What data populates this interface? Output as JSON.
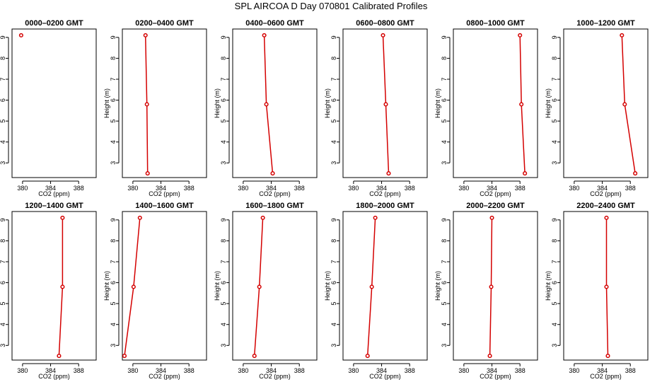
{
  "title": "SPL AIRCOA D  Day 070801  Calibrated Profiles",
  "chart_data": [
    {
      "type": "line",
      "title": "0000–0200 GMT",
      "xlabel": "CO2 (ppm)",
      "ylabel": "Height (m)",
      "xlim": [
        378.5,
        390.5
      ],
      "ylim": [
        2.3,
        9.4
      ],
      "xticks": [
        380,
        384,
        388
      ],
      "yticks": [
        3,
        4,
        5,
        6,
        7,
        8,
        9
      ],
      "series": [
        {
          "x": [
            379.8
          ],
          "y": [
            9.1
          ]
        }
      ]
    },
    {
      "type": "line",
      "title": "0200–0400 GMT",
      "xlabel": "CO2 (ppm)",
      "ylabel": "Height (m)",
      "xlim": [
        378.5,
        390.5
      ],
      "ylim": [
        2.3,
        9.4
      ],
      "xticks": [
        380,
        384,
        388
      ],
      "yticks": [
        3,
        4,
        5,
        6,
        7,
        8,
        9
      ],
      "series": [
        {
          "x": [
            381.8,
            382.0,
            382.1
          ],
          "y": [
            9.1,
            5.8,
            2.5
          ]
        }
      ]
    },
    {
      "type": "line",
      "title": "0400–0600 GMT",
      "xlabel": "CO2 (ppm)",
      "ylabel": "Height (m)",
      "xlim": [
        378.5,
        390.5
      ],
      "ylim": [
        2.3,
        9.4
      ],
      "xticks": [
        380,
        384,
        388
      ],
      "yticks": [
        3,
        4,
        5,
        6,
        7,
        8,
        9
      ],
      "series": [
        {
          "x": [
            383.0,
            383.3,
            384.2
          ],
          "y": [
            9.1,
            5.8,
            2.5
          ]
        }
      ]
    },
    {
      "type": "line",
      "title": "0600–0800 GMT",
      "xlabel": "CO2 (ppm)",
      "ylabel": "Height (m)",
      "xlim": [
        378.5,
        390.5
      ],
      "ylim": [
        2.3,
        9.4
      ],
      "xticks": [
        380,
        384,
        388
      ],
      "yticks": [
        3,
        4,
        5,
        6,
        7,
        8,
        9
      ],
      "series": [
        {
          "x": [
            384.2,
            384.6,
            385.0
          ],
          "y": [
            9.1,
            5.8,
            2.5
          ]
        }
      ]
    },
    {
      "type": "line",
      "title": "0800–1000 GMT",
      "xlabel": "CO2 (ppm)",
      "ylabel": "Height (m)",
      "xlim": [
        378.5,
        390.5
      ],
      "ylim": [
        2.3,
        9.4
      ],
      "xticks": [
        380,
        384,
        388
      ],
      "yticks": [
        3,
        4,
        5,
        6,
        7,
        8,
        9
      ],
      "series": [
        {
          "x": [
            388.0,
            388.2,
            388.7
          ],
          "y": [
            9.1,
            5.8,
            2.5
          ]
        }
      ]
    },
    {
      "type": "line",
      "title": "1000–1200 GMT",
      "xlabel": "CO2 (ppm)",
      "ylabel": "Height (m)",
      "xlim": [
        378.5,
        390.5
      ],
      "ylim": [
        2.3,
        9.4
      ],
      "xticks": [
        380,
        384,
        388
      ],
      "yticks": [
        3,
        4,
        5,
        6,
        7,
        8,
        9
      ],
      "series": [
        {
          "x": [
            386.8,
            387.2,
            388.7
          ],
          "y": [
            9.1,
            5.8,
            2.5
          ]
        }
      ]
    },
    {
      "type": "line",
      "title": "1200–1400 GMT",
      "xlabel": "CO2 (ppm)",
      "ylabel": "Height (m)",
      "xlim": [
        378.5,
        390.5
      ],
      "ylim": [
        2.3,
        9.4
      ],
      "xticks": [
        380,
        384,
        388
      ],
      "yticks": [
        3,
        4,
        5,
        6,
        7,
        8,
        9
      ],
      "series": [
        {
          "x": [
            385.7,
            385.7,
            385.2
          ],
          "y": [
            9.1,
            5.8,
            2.5
          ]
        }
      ]
    },
    {
      "type": "line",
      "title": "1400–1600 GMT",
      "xlabel": "CO2 (ppm)",
      "ylabel": "Height (m)",
      "xlim": [
        378.5,
        390.5
      ],
      "ylim": [
        2.3,
        9.4
      ],
      "xticks": [
        380,
        384,
        388
      ],
      "yticks": [
        3,
        4,
        5,
        6,
        7,
        8,
        9
      ],
      "series": [
        {
          "x": [
            381.0,
            380.1,
            378.8
          ],
          "y": [
            9.1,
            5.8,
            2.5
          ]
        }
      ]
    },
    {
      "type": "line",
      "title": "1600–1800 GMT",
      "xlabel": "CO2 (ppm)",
      "ylabel": "Height (m)",
      "xlim": [
        378.5,
        390.5
      ],
      "ylim": [
        2.3,
        9.4
      ],
      "xticks": [
        380,
        384,
        388
      ],
      "yticks": [
        3,
        4,
        5,
        6,
        7,
        8,
        9
      ],
      "series": [
        {
          "x": [
            382.8,
            382.3,
            381.6
          ],
          "y": [
            9.1,
            5.8,
            2.5
          ]
        }
      ]
    },
    {
      "type": "line",
      "title": "1800–2000 GMT",
      "xlabel": "CO2 (ppm)",
      "ylabel": "Height (m)",
      "xlim": [
        378.5,
        390.5
      ],
      "ylim": [
        2.3,
        9.4
      ],
      "xticks": [
        380,
        384,
        388
      ],
      "yticks": [
        3,
        4,
        5,
        6,
        7,
        8,
        9
      ],
      "series": [
        {
          "x": [
            383.1,
            382.6,
            382.0
          ],
          "y": [
            9.1,
            5.8,
            2.5
          ]
        }
      ]
    },
    {
      "type": "line",
      "title": "2000–2200 GMT",
      "xlabel": "CO2 (ppm)",
      "ylabel": "Height (m)",
      "xlim": [
        378.5,
        390.5
      ],
      "ylim": [
        2.3,
        9.4
      ],
      "xticks": [
        380,
        384,
        388
      ],
      "yticks": [
        3,
        4,
        5,
        6,
        7,
        8,
        9
      ],
      "series": [
        {
          "x": [
            384.0,
            383.9,
            383.7
          ],
          "y": [
            9.1,
            5.8,
            2.5
          ]
        }
      ]
    },
    {
      "type": "line",
      "title": "2200–2400 GMT",
      "xlabel": "CO2 (ppm)",
      "ylabel": "Height (m)",
      "xlim": [
        378.5,
        390.5
      ],
      "ylim": [
        2.3,
        9.4
      ],
      "xticks": [
        380,
        384,
        388
      ],
      "yticks": [
        3,
        4,
        5,
        6,
        7,
        8,
        9
      ],
      "series": [
        {
          "x": [
            384.6,
            384.6,
            384.8
          ],
          "y": [
            9.1,
            5.8,
            2.5
          ]
        }
      ]
    }
  ]
}
